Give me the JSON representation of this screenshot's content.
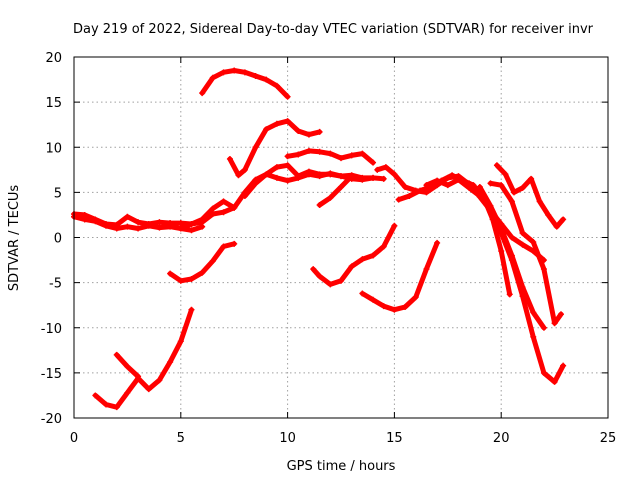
{
  "chart_data": {
    "type": "scatter",
    "title": "Day 219 of 2022, Sidereal Day-to-day VTEC variation (SDTVAR) for receiver invr",
    "xlabel": "GPS time / hours",
    "ylabel": "SDTVAR / TECUs",
    "xlim": [
      0,
      25
    ],
    "ylim": [
      -20,
      20
    ],
    "xticks": [
      0,
      5,
      10,
      15,
      20,
      25
    ],
    "yticks": [
      -20,
      -15,
      -10,
      -5,
      0,
      5,
      10,
      15,
      20
    ],
    "xtick_labels": [
      "0",
      "5",
      "10",
      "15",
      "20",
      "25"
    ],
    "ytick_labels": [
      "-20",
      "-15",
      "-10",
      "-5",
      "0",
      "5",
      "10",
      "15",
      "20"
    ],
    "grid": true,
    "legend": "none",
    "color": "#ff0000",
    "marker": "plus",
    "series": [
      {
        "name": "s1",
        "x": [
          0,
          0.5,
          1,
          1.5,
          2,
          2.5,
          3,
          3.5,
          4,
          4.5,
          5,
          5.5,
          6
        ],
        "y": [
          2.3,
          2.0,
          1.8,
          1.3,
          1.0,
          1.2,
          1.0,
          1.3,
          1.1,
          1.2,
          1.0,
          0.8,
          1.2
        ]
      },
      {
        "name": "s2",
        "x": [
          0,
          0.5,
          1,
          1.5,
          2,
          2.5,
          3,
          3.5,
          4,
          4.5,
          5,
          5.5,
          6,
          6.5,
          7,
          7.5,
          8,
          8.5,
          9,
          9.5,
          10,
          10.5,
          11,
          11.5,
          12,
          12.5,
          13,
          13.5,
          14
        ],
        "y": [
          2.6,
          2.5,
          2.0,
          1.5,
          1.4,
          2.3,
          1.7,
          1.5,
          1.7,
          1.6,
          1.6,
          1.5,
          1.7,
          2.6,
          2.8,
          3.3,
          5.0,
          6.4,
          7.0,
          6.6,
          6.3,
          6.6,
          7.0,
          6.8,
          7.1,
          6.8,
          6.9,
          6.6,
          6.6
        ]
      },
      {
        "name": "s3",
        "x": [
          1,
          1.5,
          2,
          2.5,
          3,
          3.5,
          4,
          4.5,
          5,
          5.5
        ],
        "y": [
          -17.5,
          -18.5,
          -18.8,
          -17.2,
          -15.6,
          -16.8,
          -15.8,
          -13.8,
          -11.5,
          -8.0
        ]
      },
      {
        "name": "s4",
        "x": [
          2,
          2.5,
          3
        ],
        "y": [
          -13.0,
          -14.3,
          -15.4
        ]
      },
      {
        "name": "s5",
        "x": [
          4.5,
          5,
          5.5,
          6,
          6.5,
          7,
          7.5
        ],
        "y": [
          -4.0,
          -4.8,
          -4.6,
          -3.9,
          -2.6,
          -1.0,
          -0.7
        ]
      },
      {
        "name": "s6",
        "x": [
          5,
          5.5,
          6,
          6.5,
          7,
          7.5
        ],
        "y": [
          1.0,
          1.5,
          2.0,
          3.2,
          4.0,
          3.3
        ]
      },
      {
        "name": "s7",
        "x": [
          6,
          6.5,
          7,
          7.5,
          8,
          8.5,
          9,
          9.5,
          10
        ],
        "y": [
          16.0,
          17.7,
          18.3,
          18.5,
          18.3,
          17.9,
          17.5,
          16.8,
          15.6
        ]
      },
      {
        "name": "s8",
        "x": [
          7.3,
          7.7,
          8,
          8.5,
          9,
          9.5,
          10,
          10.5,
          11,
          11.5
        ],
        "y": [
          8.7,
          6.9,
          7.5,
          10.0,
          12.0,
          12.6,
          12.9,
          11.8,
          11.4,
          11.7
        ]
      },
      {
        "name": "s9",
        "x": [
          8,
          8.5,
          9,
          9.5,
          10,
          10.5,
          11,
          11.5,
          12,
          12.5,
          13,
          13.5,
          14,
          14.5
        ],
        "y": [
          4.6,
          6.0,
          7.0,
          7.8,
          8.0,
          6.8,
          7.3,
          7.0,
          7.0,
          6.8,
          6.5,
          6.4,
          6.6,
          6.5
        ]
      },
      {
        "name": "s10",
        "x": [
          10,
          10.5,
          11,
          11.5,
          12,
          12.5,
          13,
          13.5,
          14
        ],
        "y": [
          9.0,
          9.2,
          9.6,
          9.5,
          9.3,
          8.8,
          9.1,
          9.3,
          8.3
        ]
      },
      {
        "name": "s11",
        "x": [
          11.5,
          12,
          12.5,
          13
        ],
        "y": [
          3.6,
          4.4,
          5.6,
          6.8
        ]
      },
      {
        "name": "s12",
        "x": [
          11.2,
          11.5,
          12,
          12.5,
          13,
          13.5,
          14,
          14.5,
          15
        ],
        "y": [
          -3.5,
          -4.3,
          -5.2,
          -4.8,
          -3.2,
          -2.4,
          -2.0,
          -1.0,
          1.3
        ]
      },
      {
        "name": "s13",
        "x": [
          13.5,
          14,
          14.5,
          15,
          15.5,
          16,
          16.5,
          17
        ],
        "y": [
          -6.2,
          -6.9,
          -7.6,
          -8.0,
          -7.7,
          -6.6,
          -3.5,
          -0.6
        ]
      },
      {
        "name": "s14",
        "x": [
          14.2,
          14.6,
          15,
          15.5,
          16,
          16.5,
          17,
          17.5,
          18,
          18.5,
          19
        ],
        "y": [
          7.5,
          7.8,
          7.0,
          5.6,
          5.2,
          5.0,
          5.8,
          6.6,
          6.8,
          5.9,
          5.0
        ]
      },
      {
        "name": "s15",
        "x": [
          15.2,
          15.7,
          16.2,
          16.7,
          17.2,
          17.7,
          18.2,
          18.7,
          19.2,
          19.6,
          20,
          20.4
        ],
        "y": [
          4.2,
          4.6,
          5.2,
          5.6,
          6.3,
          6.9,
          6.3,
          5.8,
          4.3,
          2.0,
          -1.5,
          -6.3
        ]
      },
      {
        "name": "s16",
        "x": [
          16.5,
          17,
          17.5,
          18,
          18.5,
          19,
          19.5,
          20,
          20.5,
          21,
          21.5,
          22,
          22.5,
          22.9
        ],
        "y": [
          5.8,
          6.3,
          5.8,
          6.4,
          5.5,
          4.6,
          3.2,
          0.5,
          -2.5,
          -6.5,
          -11.0,
          -15.0,
          -16.0,
          -14.2
        ]
      },
      {
        "name": "s17",
        "x": [
          19,
          19.5,
          20,
          20.5,
          21,
          21.5,
          22
        ],
        "y": [
          5.6,
          3.5,
          1.0,
          -2.0,
          -5.5,
          -8.3,
          -10.0
        ]
      },
      {
        "name": "s18",
        "x": [
          19.5,
          20,
          20.5,
          21,
          21.5,
          22,
          22.5,
          22.8
        ],
        "y": [
          6.0,
          5.8,
          4.0,
          0.5,
          -0.5,
          -3.5,
          -9.5,
          -8.5
        ]
      },
      {
        "name": "s19",
        "x": [
          18.5,
          19,
          19.5,
          20,
          20.5,
          21,
          21.5,
          22
        ],
        "y": [
          6.0,
          4.5,
          3.0,
          1.5,
          0.0,
          -0.8,
          -1.5,
          -2.5
        ]
      },
      {
        "name": "s20",
        "x": [
          19.8,
          20.2,
          20.6,
          21,
          21.4,
          21.8,
          22.2,
          22.6,
          22.9
        ],
        "y": [
          8.0,
          7.0,
          5.0,
          5.5,
          6.5,
          4.0,
          2.5,
          1.2,
          2.0
        ]
      }
    ]
  }
}
